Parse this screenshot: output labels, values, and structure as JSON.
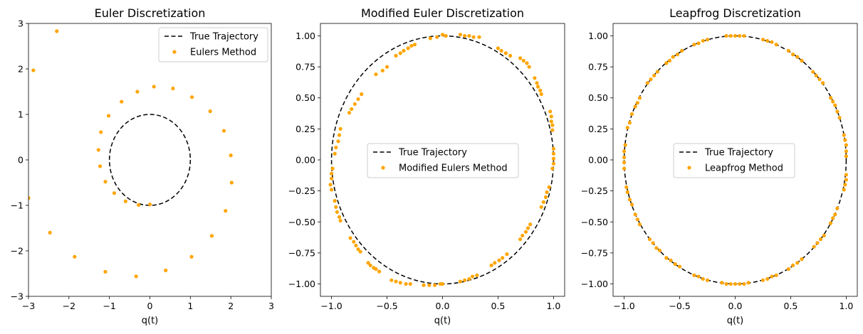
{
  "chart_data": [
    {
      "type": "scatter",
      "title": "Euler Discretization",
      "xlabel": "q(t)",
      "ylabel": "",
      "xlim": [
        -3,
        3
      ],
      "ylim": [
        -3,
        3
      ],
      "xticks": [
        "−3",
        "−2",
        "−1",
        "0",
        "1",
        "2",
        "3"
      ],
      "yticks": [
        "−3",
        "−2",
        "−1",
        "0",
        "1",
        "2",
        "3"
      ],
      "legend_position": "upper-right",
      "series": [
        {
          "name": "True Trajectory",
          "kind": "dashed-line",
          "color": "#000000",
          "shape": "circle",
          "center": [
            0,
            0
          ],
          "radius": 1
        },
        {
          "name": "Eulers Method",
          "kind": "scatter",
          "color": "#ffa500",
          "points": [
            [
              -2.3,
              2.83
            ],
            [
              -2.88,
              1.97
            ],
            [
              -3.0,
              -0.84
            ],
            [
              -2.47,
              -1.6
            ],
            [
              -1.86,
              -2.13
            ],
            [
              -1.1,
              -2.46
            ],
            [
              -0.34,
              -2.56
            ],
            [
              0.39,
              -2.43
            ],
            [
              1.03,
              -2.13
            ],
            [
              1.53,
              -1.67
            ],
            [
              1.87,
              -1.12
            ],
            [
              2.02,
              -0.5
            ],
            [
              2.0,
              0.1
            ],
            [
              1.83,
              0.64
            ],
            [
              1.49,
              1.07
            ],
            [
              1.04,
              1.38
            ],
            [
              0.57,
              1.57
            ],
            [
              0.1,
              1.61
            ],
            [
              -0.31,
              1.5
            ],
            [
              -0.7,
              1.28
            ],
            [
              -1.02,
              0.97
            ],
            [
              -1.21,
              0.61
            ],
            [
              -1.27,
              0.22
            ],
            [
              -1.23,
              -0.14
            ],
            [
              -1.1,
              -0.48
            ],
            [
              -0.88,
              -0.73
            ],
            [
              -0.6,
              -0.91
            ],
            [
              -0.28,
              -0.99
            ],
            [
              0.0,
              -0.98
            ]
          ]
        }
      ]
    },
    {
      "type": "scatter",
      "title": "Modified Euler Discretization",
      "xlabel": "q(t)",
      "ylabel": "",
      "xlim": [
        -1.1,
        1.1
      ],
      "ylim": [
        -1.1,
        1.1
      ],
      "xticks": [
        "−1.0",
        "−0.5",
        "0.0",
        "0.5",
        "1.0"
      ],
      "yticks": [
        "−1.00",
        "−0.75",
        "−0.50",
        "−0.25",
        "0.00",
        "0.25",
        "0.50",
        "0.75",
        "1.00"
      ],
      "legend_position": "center",
      "series": [
        {
          "name": "True Trajectory",
          "kind": "dashed-line",
          "color": "#000000",
          "shape": "circle",
          "center": [
            0,
            0
          ],
          "radius": 1
        },
        {
          "name": "Modified Eulers Method",
          "kind": "scatter",
          "color": "#ffa500",
          "points": [
            [
              0.0,
              1.01
            ],
            [
              0.03,
              1.0
            ],
            [
              -0.11,
              0.98
            ],
            [
              -0.05,
              0.99
            ],
            [
              0.16,
              1.01
            ],
            [
              0.2,
              1.0
            ],
            [
              0.24,
              1.0
            ],
            [
              0.28,
              0.99
            ],
            [
              0.33,
              0.99
            ],
            [
              0.5,
              0.9
            ],
            [
              0.53,
              0.88
            ],
            [
              0.57,
              0.86
            ],
            [
              0.61,
              0.84
            ],
            [
              -0.38,
              0.86
            ],
            [
              -0.35,
              0.88
            ],
            [
              -0.42,
              0.84
            ],
            [
              -0.31,
              0.9
            ],
            [
              -0.28,
              0.92
            ],
            [
              -0.25,
              0.93
            ],
            [
              -0.6,
              0.69
            ],
            [
              -0.54,
              0.72
            ],
            [
              -0.5,
              0.75
            ],
            [
              -0.73,
              0.53
            ],
            [
              -0.76,
              0.49
            ],
            [
              -0.79,
              0.45
            ],
            [
              -0.82,
              0.41
            ],
            [
              -0.84,
              0.38
            ],
            [
              -0.93,
              0.2
            ],
            [
              -0.92,
              0.25
            ],
            [
              -0.94,
              0.15
            ],
            [
              -0.96,
              0.1
            ],
            [
              -0.97,
              0.05
            ],
            [
              -0.99,
              -0.07
            ],
            [
              -1.0,
              -0.11
            ],
            [
              -1.0,
              -0.15
            ],
            [
              -1.01,
              -0.2
            ],
            [
              -1.0,
              -0.24
            ],
            [
              -0.97,
              -0.33
            ],
            [
              -0.96,
              -0.38
            ],
            [
              -0.95,
              -0.42
            ],
            [
              -0.93,
              -0.46
            ],
            [
              -0.92,
              -0.49
            ],
            [
              -0.83,
              -0.63
            ],
            [
              -0.8,
              -0.66
            ],
            [
              -0.78,
              -0.69
            ],
            [
              -0.76,
              -0.72
            ],
            [
              -0.74,
              -0.74
            ],
            [
              -0.67,
              -0.83
            ],
            [
              -0.65,
              -0.85
            ],
            [
              -0.62,
              -0.87
            ],
            [
              -0.6,
              -0.88
            ],
            [
              -0.57,
              -0.9
            ],
            [
              -0.46,
              -0.97
            ],
            [
              -0.42,
              -0.98
            ],
            [
              -0.38,
              -0.99
            ],
            [
              -0.33,
              -1.0
            ],
            [
              -0.29,
              -1.0
            ],
            [
              -0.17,
              -1.01
            ],
            [
              -0.12,
              -1.01
            ],
            [
              -0.07,
              -1.01
            ],
            [
              -0.02,
              -1.0
            ],
            [
              0.0,
              -1.0
            ],
            [
              0.16,
              -0.98
            ],
            [
              0.2,
              -0.97
            ],
            [
              0.24,
              -0.96
            ],
            [
              0.27,
              -0.94
            ],
            [
              0.31,
              -0.93
            ],
            [
              0.44,
              -0.85
            ],
            [
              0.47,
              -0.83
            ],
            [
              0.51,
              -0.81
            ],
            [
              0.54,
              -0.79
            ],
            [
              0.58,
              -0.76
            ],
            [
              0.7,
              -0.64
            ],
            [
              0.72,
              -0.61
            ],
            [
              0.75,
              -0.58
            ],
            [
              0.77,
              -0.55
            ],
            [
              0.79,
              -0.52
            ],
            [
              0.89,
              -0.38
            ],
            [
              0.91,
              -0.34
            ],
            [
              0.93,
              -0.3
            ],
            [
              0.94,
              -0.26
            ],
            [
              0.96,
              -0.22
            ],
            [
              0.99,
              -0.07
            ],
            [
              1.0,
              -0.03
            ],
            [
              1.0,
              0.01
            ],
            [
              1.0,
              0.05
            ],
            [
              1.0,
              0.09
            ],
            [
              0.99,
              0.24
            ],
            [
              0.99,
              0.28
            ],
            [
              0.98,
              0.31
            ],
            [
              0.98,
              0.35
            ],
            [
              0.97,
              0.39
            ],
            [
              0.89,
              0.53
            ],
            [
              0.88,
              0.56
            ],
            [
              0.86,
              0.59
            ],
            [
              0.85,
              0.62
            ],
            [
              0.83,
              0.66
            ],
            [
              0.7,
              0.82
            ],
            [
              0.73,
              0.8
            ],
            [
              0.76,
              0.78
            ],
            [
              0.78,
              0.75
            ]
          ]
        }
      ]
    },
    {
      "type": "scatter",
      "title": "Leapfrog Discretization",
      "xlabel": "q(t)",
      "ylabel": "",
      "xlim": [
        -1.1,
        1.1
      ],
      "ylim": [
        -1.1,
        1.1
      ],
      "xticks": [
        "−1.0",
        "−0.5",
        "0.0",
        "0.5",
        "1.0"
      ],
      "yticks": [
        "−1.00",
        "−0.75",
        "−0.50",
        "−0.25",
        "0.00",
        "0.25",
        "0.50",
        "0.75",
        "1.00"
      ],
      "legend_position": "center",
      "series": [
        {
          "name": "True Trajectory",
          "kind": "dashed-line",
          "color": "#000000",
          "shape": "circle",
          "center": [
            0,
            0
          ],
          "radius": 1
        },
        {
          "name": "Leapfrog Method",
          "kind": "scatter",
          "color": "#ffa500",
          "points": [
            [
              0.0,
              1.0
            ],
            [
              0.04,
              1.0
            ],
            [
              -0.04,
              1.0
            ],
            [
              0.08,
              1.0
            ],
            [
              -0.08,
              1.0
            ],
            [
              0.25,
              0.97
            ],
            [
              0.29,
              0.96
            ],
            [
              0.33,
              0.95
            ],
            [
              0.37,
              0.93
            ],
            [
              -0.25,
              0.97
            ],
            [
              -0.29,
              0.96
            ],
            [
              -0.33,
              0.94
            ],
            [
              -0.37,
              0.93
            ],
            [
              0.48,
              0.88
            ],
            [
              0.52,
              0.85
            ],
            [
              0.56,
              0.83
            ],
            [
              0.6,
              0.8
            ],
            [
              -0.48,
              0.88
            ],
            [
              -0.52,
              0.85
            ],
            [
              -0.56,
              0.83
            ],
            [
              -0.59,
              0.8
            ],
            [
              -0.62,
              0.78
            ],
            [
              0.7,
              0.71
            ],
            [
              0.73,
              0.68
            ],
            [
              0.76,
              0.65
            ],
            [
              0.79,
              0.62
            ],
            [
              -0.7,
              0.71
            ],
            [
              -0.73,
              0.68
            ],
            [
              -0.76,
              0.65
            ],
            [
              -0.79,
              0.62
            ],
            [
              0.86,
              0.5
            ],
            [
              0.88,
              0.47
            ],
            [
              0.9,
              0.44
            ],
            [
              0.92,
              0.39
            ],
            [
              0.94,
              0.34
            ],
            [
              -0.86,
              0.5
            ],
            [
              -0.88,
              0.46
            ],
            [
              -0.9,
              0.43
            ],
            [
              -0.93,
              0.37
            ],
            [
              -0.95,
              0.3
            ],
            [
              -0.97,
              0.26
            ],
            [
              0.98,
              0.2
            ],
            [
              0.99,
              0.16
            ],
            [
              1.0,
              0.12
            ],
            [
              1.0,
              0.07
            ],
            [
              1.0,
              0.03
            ],
            [
              -0.99,
              0.12
            ],
            [
              -1.0,
              0.07
            ],
            [
              -1.0,
              0.02
            ],
            [
              -1.0,
              -0.02
            ],
            [
              -1.0,
              -0.07
            ],
            [
              1.0,
              -0.12
            ],
            [
              1.0,
              -0.16
            ],
            [
              0.99,
              -0.2
            ],
            [
              0.98,
              -0.24
            ],
            [
              -0.98,
              -0.22
            ],
            [
              -0.97,
              -0.26
            ],
            [
              -0.95,
              -0.32
            ],
            [
              -0.93,
              -0.36
            ],
            [
              0.92,
              -0.39
            ],
            [
              0.9,
              -0.44
            ],
            [
              0.88,
              -0.47
            ],
            [
              0.86,
              -0.51
            ],
            [
              -0.9,
              -0.44
            ],
            [
              -0.88,
              -0.48
            ],
            [
              -0.86,
              -0.52
            ],
            [
              0.8,
              -0.61
            ],
            [
              0.77,
              -0.64
            ],
            [
              0.74,
              -0.67
            ],
            [
              0.71,
              -0.7
            ],
            [
              -0.77,
              -0.64
            ],
            [
              -0.74,
              -0.67
            ],
            [
              -0.71,
              -0.71
            ],
            [
              -0.68,
              -0.73
            ],
            [
              0.6,
              -0.8
            ],
            [
              0.56,
              -0.83
            ],
            [
              0.52,
              -0.85
            ],
            [
              0.48,
              -0.88
            ],
            [
              -0.62,
              -0.79
            ],
            [
              -0.58,
              -0.81
            ],
            [
              -0.54,
              -0.84
            ],
            [
              -0.5,
              -0.86
            ],
            [
              0.37,
              -0.93
            ],
            [
              0.33,
              -0.94
            ],
            [
              0.29,
              -0.96
            ],
            [
              0.25,
              -0.97
            ],
            [
              -0.37,
              -0.93
            ],
            [
              -0.33,
              -0.94
            ],
            [
              -0.29,
              -0.96
            ],
            [
              -0.25,
              -0.97
            ],
            [
              0.12,
              -0.99
            ],
            [
              0.08,
              -1.0
            ],
            [
              0.04,
              -1.0
            ],
            [
              0.0,
              -1.0
            ],
            [
              -0.12,
              -0.99
            ],
            [
              -0.08,
              -1.0
            ],
            [
              -0.04,
              -1.0
            ]
          ]
        }
      ]
    }
  ]
}
